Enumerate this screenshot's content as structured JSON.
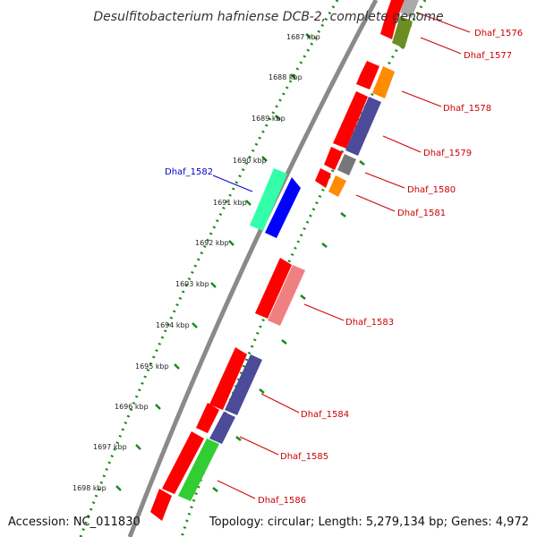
{
  "title": "Desulfitobacterium hafniense DCB-2, complete genome",
  "accession": "Accession: NC_011830",
  "summary": "Topology: circular; Length: 5,279,134 bp; Genes: 4,972",
  "tick_labels": [
    "1687 kbp",
    "1688 kbp",
    "1689 kbp",
    "1690 kbp",
    "1691 kbp",
    "1692 kbp",
    "1693 kbp",
    "1694 kbp",
    "1695 kbp",
    "1696 kbp",
    "1697 kbp",
    "1698 kbp"
  ],
  "gene_labels": [
    "Dhaf_1576",
    "Dhaf_1577",
    "Dhaf_1578",
    "Dhaf_1579",
    "Dhaf_1580",
    "Dhaf_1581",
    "Dhaf_1582",
    "Dhaf_1583",
    "Dhaf_1584",
    "Dhaf_1585",
    "Dhaf_1586"
  ],
  "colors": {
    "backbone": "#8a8a8a",
    "tick_dots": "#1a8a1a",
    "label_red": "#cc0000",
    "label_blue": "#0000cc",
    "gene_red": "#ff0000",
    "gene_orange": "#ff8c00",
    "gene_purple": "#4b4b99",
    "gene_gray": "#777777",
    "gene_olive": "#6b8e23",
    "gene_teal": "#33ffaa",
    "gene_blue": "#0000ff",
    "gene_pink": "#f08080",
    "gene_green": "#32cd32"
  }
}
